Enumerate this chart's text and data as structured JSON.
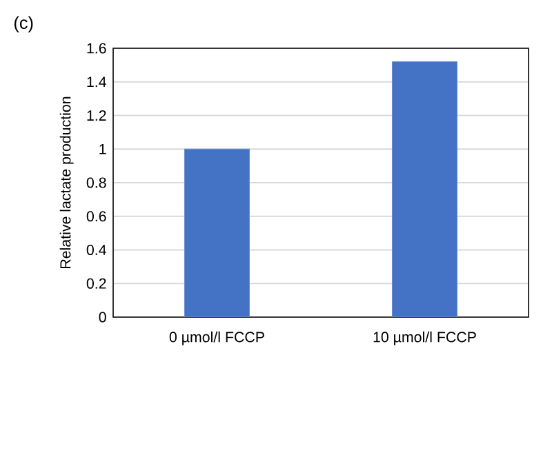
{
  "chart_data": {
    "type": "bar",
    "ylabel": "Relative lactate production",
    "annotations": [
      "(c)"
    ],
    "categories": [
      "0 µmol/l FCCP",
      "10 µmol/l FCCP"
    ],
    "values": [
      1.0,
      1.52
    ],
    "color": "#4472c4",
    "ylim": [
      0,
      1.6
    ],
    "yticks": [
      0,
      0.2,
      0.4,
      0.6,
      0.8,
      1,
      1.2,
      1.4,
      1.6
    ],
    "grid": "y"
  }
}
